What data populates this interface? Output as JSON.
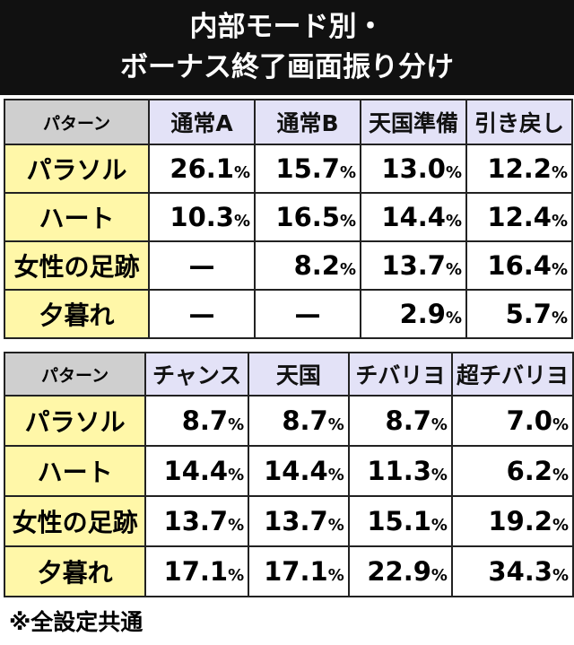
{
  "title": [
    "内部モード別・",
    "ボーナス終了画面振り分け"
  ],
  "tables": [
    {
      "header": [
        "パターン",
        "通常A",
        "通常B",
        "天国準備",
        "引き戻し"
      ],
      "rows": [
        [
          "パラソル",
          "26.1%",
          "15.7%",
          "13.0%",
          "12.2%"
        ],
        [
          "ハート",
          "10.3%",
          "16.5%",
          "14.4%",
          "12.4%"
        ],
        [
          "女性の足跡",
          "—",
          "8.2%",
          "13.7%",
          "16.4%"
        ],
        [
          "夕暮れ",
          "—",
          "—",
          "2.9%",
          "5.7%"
        ]
      ]
    },
    {
      "header": [
        "パターン",
        "チャンス",
        "天国",
        "チバリヨ",
        "超チバリヨ"
      ],
      "rows": [
        [
          "パラソル",
          "8.7%",
          "8.7%",
          "8.7%",
          "7.0%"
        ],
        [
          "ハート",
          "14.4%",
          "14.4%",
          "11.3%",
          "6.2%"
        ],
        [
          "女性の足跡",
          "13.7%",
          "13.7%",
          "15.1%",
          "19.2%"
        ],
        [
          "夕暮れ",
          "17.1%",
          "17.1%",
          "22.9%",
          "34.3%"
        ]
      ]
    }
  ],
  "footnote": "※全設定共通"
}
